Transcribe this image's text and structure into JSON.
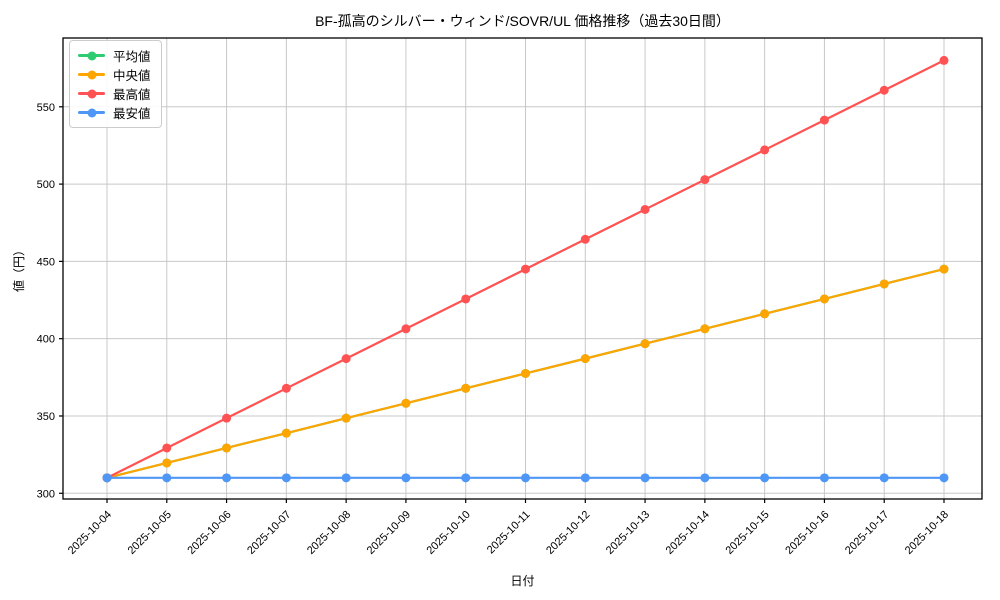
{
  "chart_data": {
    "type": "line",
    "title": "BF-孤高のシルバー・ウィンド/SOVR/UL 価格推移（過去30日間）",
    "xlabel": "日付",
    "ylabel": "値（円）",
    "x": [
      "2025-10-04",
      "2025-10-05",
      "2025-10-06",
      "2025-10-07",
      "2025-10-08",
      "2025-10-09",
      "2025-10-10",
      "2025-10-11",
      "2025-10-12",
      "2025-10-13",
      "2025-10-14",
      "2025-10-15",
      "2025-10-16",
      "2025-10-17",
      "2025-10-18"
    ],
    "series": [
      {
        "name": "平均値",
        "color": "#2ecc71",
        "values": [
          310.0,
          319.6,
          329.3,
          338.9,
          348.6,
          358.2,
          367.9,
          377.5,
          387.1,
          396.8,
          406.4,
          416.1,
          425.7,
          435.4,
          445.0
        ]
      },
      {
        "name": "中央値",
        "color": "#ffa502",
        "values": [
          310.0,
          319.6,
          329.3,
          338.9,
          348.6,
          358.2,
          367.9,
          377.5,
          387.1,
          396.8,
          406.4,
          416.1,
          425.7,
          435.4,
          445.0
        ]
      },
      {
        "name": "最高値",
        "color": "#ff5252",
        "values": [
          310.0,
          329.3,
          348.6,
          367.9,
          387.1,
          406.4,
          425.7,
          445.0,
          464.3,
          483.6,
          502.9,
          522.1,
          541.4,
          560.7,
          580.0
        ]
      },
      {
        "name": "最安値",
        "color": "#4f97f7",
        "values": [
          310.0,
          310.0,
          310.0,
          310.0,
          310.0,
          310.0,
          310.0,
          310.0,
          310.0,
          310.0,
          310.0,
          310.0,
          310.0,
          310.0,
          310.0
        ]
      }
    ],
    "yticks": [
      300,
      350,
      400,
      450,
      500,
      550
    ],
    "ylim": [
      296.3,
      594.5
    ],
    "grid": true,
    "grid_color": "#c8c8c8",
    "legend_position": "upper-left",
    "note_hidden_series": "平均値 line is fully covered by 中央値 line (identical values)"
  }
}
